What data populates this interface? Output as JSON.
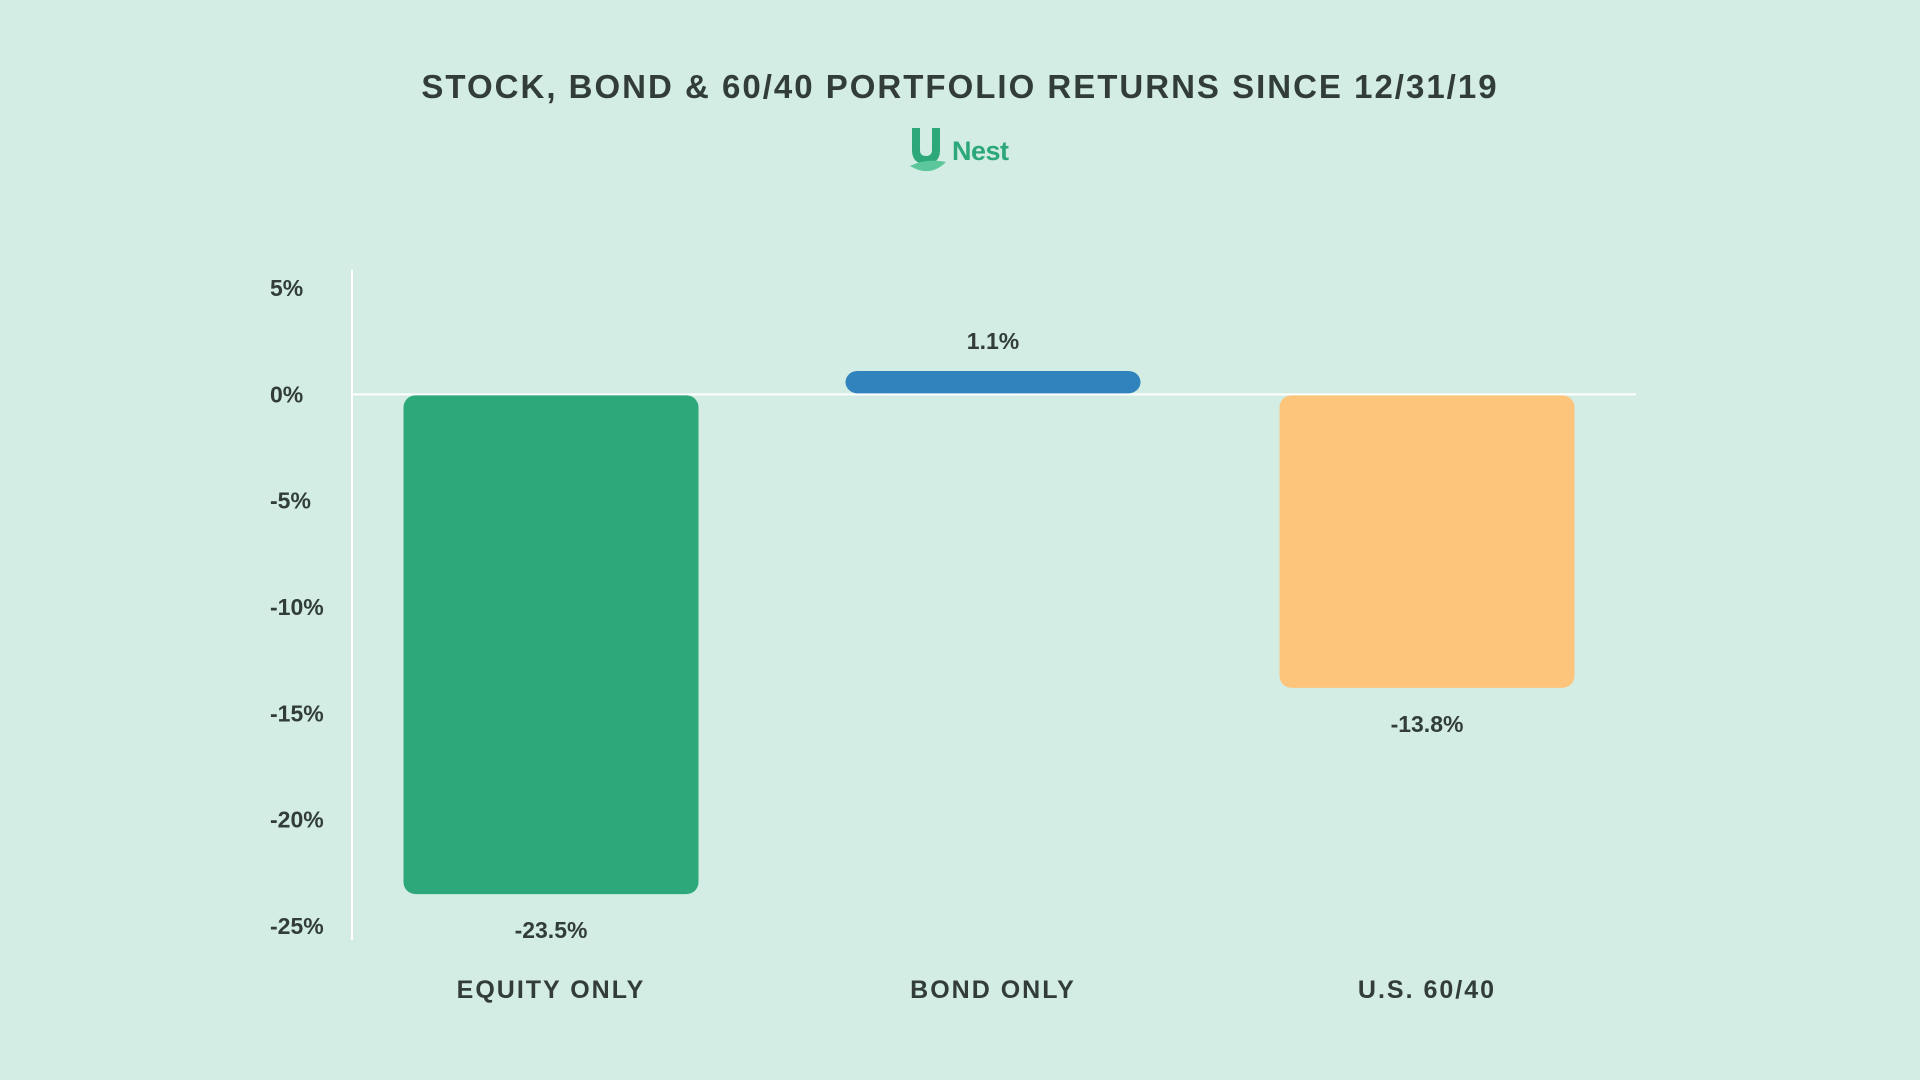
{
  "chart_data": {
    "type": "bar",
    "title": "STOCK, BOND & 60/40 PORTFOLIO RETURNS SINCE 12/31/19",
    "xlabel": "",
    "ylabel": "",
    "categories": [
      "EQUITY ONLY",
      "BOND ONLY",
      "U.S. 60/40"
    ],
    "values": [
      -23.5,
      1.1,
      -13.8
    ],
    "data_labels": [
      "-23.5%",
      "1.1%",
      "-13.8%"
    ],
    "colors": [
      "#2ca87a",
      "#3083bd",
      "#fdc57b"
    ],
    "ylim": [
      -25,
      5
    ],
    "yticks": [
      5,
      0,
      -5,
      -10,
      -15,
      -20,
      -25
    ],
    "ytick_labels": [
      "5%",
      "0%",
      "-5%",
      "-10%",
      "-15%",
      "-20%",
      "-25%"
    ],
    "grid": false,
    "legend": "none"
  },
  "logo": {
    "text": "Nest",
    "letter": "U",
    "color": "#2ca87a"
  }
}
